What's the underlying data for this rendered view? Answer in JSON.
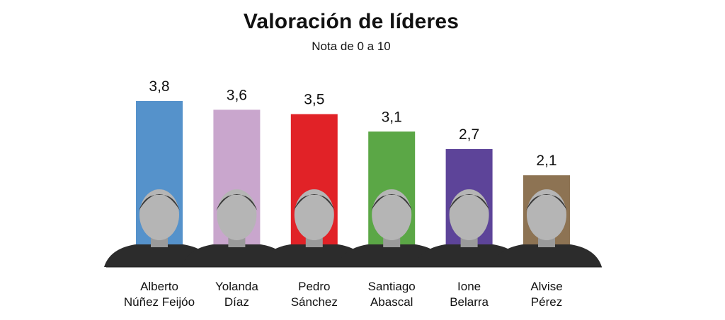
{
  "chart_data": {
    "type": "bar",
    "title": "Valoración de líderes",
    "subtitle": "Nota de 0 a 10",
    "categories": [
      [
        "Alberto",
        "Núñez Feijóo"
      ],
      [
        "Yolanda",
        "Díaz"
      ],
      [
        "Pedro",
        "Sánchez"
      ],
      [
        "Santiago",
        "Abascal"
      ],
      [
        "Ione",
        "Belarra"
      ],
      [
        "Alvise",
        "Pérez"
      ]
    ],
    "values": [
      3.8,
      3.6,
      3.5,
      3.1,
      2.7,
      2.1
    ],
    "value_labels": [
      "3,8",
      "3,6",
      "3,5",
      "3,1",
      "2,7",
      "2,1"
    ],
    "colors": [
      "#5592cb",
      "#c9a6cd",
      "#e12227",
      "#5ba746",
      "#5d4499",
      "#8d7353"
    ],
    "ylim": [
      0,
      3.8
    ],
    "grid": false,
    "legend": "none",
    "xlabel": "",
    "ylabel": ""
  }
}
